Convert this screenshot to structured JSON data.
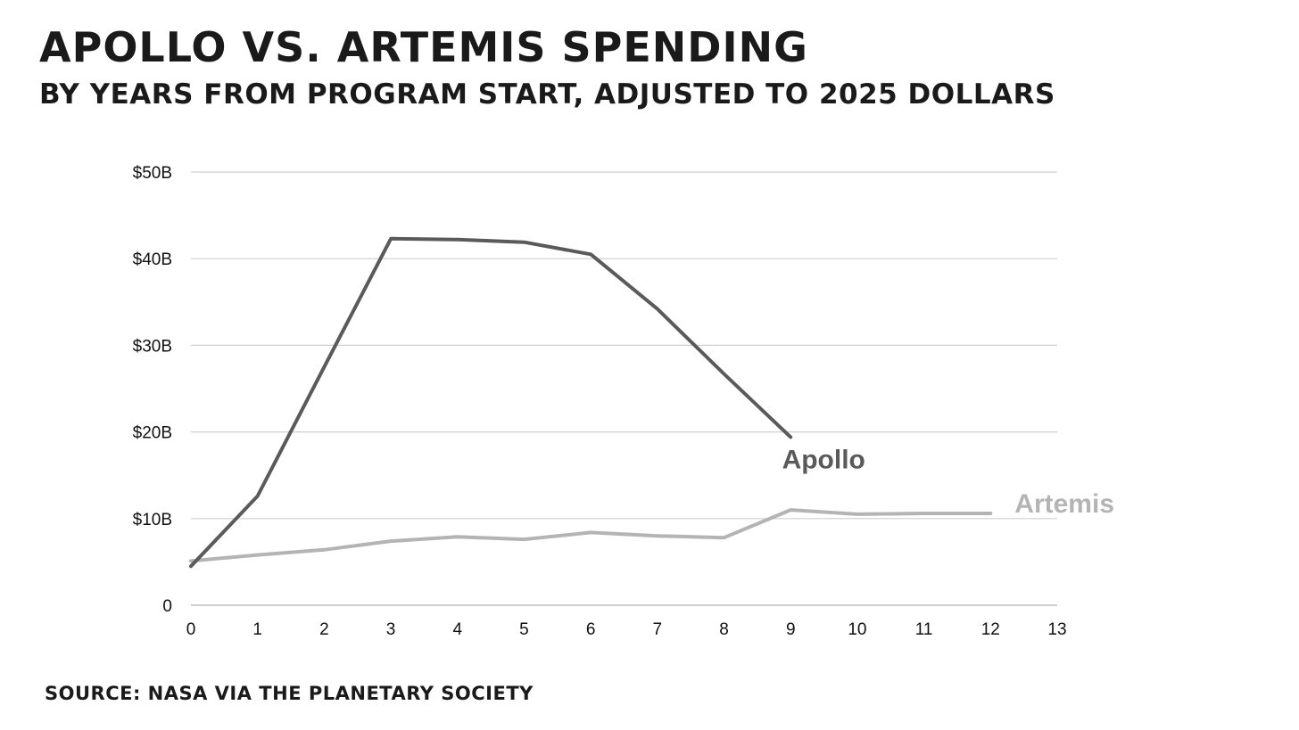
{
  "title": "Apollo vs. Artemis spending",
  "subtitle": "By years from program start, adjusted to 2025 dollars",
  "source": "Source: NASA via the Planetary Society",
  "colors": {
    "apollo": "#5a5a5a",
    "artemis": "#b4b4b4",
    "grid": "#cfcfcf",
    "axis": "#bdbdbd"
  },
  "chart_data": {
    "type": "line",
    "title": "Apollo vs. Artemis spending",
    "subtitle": "By years from program start, adjusted to 2025 dollars",
    "xlabel": "",
    "ylabel": "",
    "xlim": [
      0,
      13
    ],
    "ylim": [
      0,
      50
    ],
    "x_ticks": [
      "0",
      "1",
      "2",
      "3",
      "4",
      "5",
      "6",
      "7",
      "8",
      "9",
      "10",
      "11",
      "12",
      "13"
    ],
    "y_ticks": [
      {
        "value": 0,
        "label": "0"
      },
      {
        "value": 10,
        "label": "$10B"
      },
      {
        "value": 20,
        "label": "$20B"
      },
      {
        "value": 30,
        "label": "$30B"
      },
      {
        "value": 40,
        "label": "$40B"
      },
      {
        "value": 50,
        "label": "$50B"
      }
    ],
    "grid": true,
    "legend": "direct labels at line ends",
    "series": [
      {
        "name": "Apollo",
        "x": [
          0,
          1,
          2,
          3,
          4,
          5,
          6,
          7,
          8,
          9
        ],
        "values": [
          4.5,
          12.6,
          27.5,
          42.3,
          42.2,
          41.9,
          40.5,
          34.2,
          26.7,
          19.4
        ]
      },
      {
        "name": "Artemis",
        "x": [
          0,
          1,
          2,
          3,
          4,
          5,
          6,
          7,
          8,
          9,
          10,
          11,
          12
        ],
        "values": [
          5.1,
          5.8,
          6.4,
          7.4,
          7.9,
          7.6,
          8.4,
          8.0,
          7.8,
          11.0,
          10.5,
          10.6,
          10.6
        ]
      }
    ]
  }
}
